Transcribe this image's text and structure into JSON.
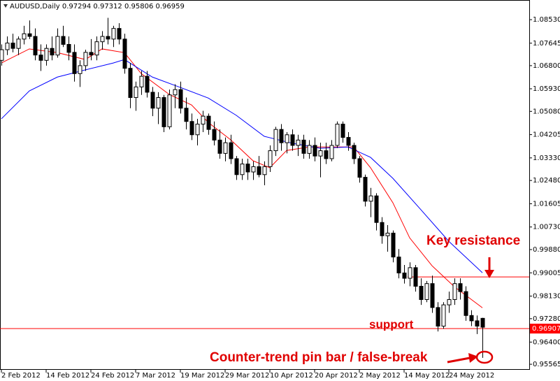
{
  "chart_data": {
    "type": "candlestick",
    "title": "AUDUSD,Daily  0.97294 0.97312 0.95806 0.96959",
    "categories": [
      "2 Feb 2012",
      null,
      null,
      null,
      null,
      null,
      null,
      null,
      "14 Feb 2012",
      null,
      null,
      null,
      null,
      null,
      null,
      null,
      "24 Feb 2012",
      null,
      null,
      null,
      null,
      null,
      null,
      null,
      "7 Mar 2012",
      null,
      null,
      null,
      null,
      null,
      null,
      null,
      "19 Mar 2012",
      null,
      null,
      null,
      null,
      null,
      null,
      null,
      "29 Mar 2012",
      null,
      null,
      null,
      null,
      null,
      null,
      null,
      "10 Apr 2012",
      null,
      null,
      null,
      null,
      null,
      null,
      null,
      "20 Apr 2012",
      null,
      null,
      null,
      null,
      null,
      null,
      null,
      "2 May 2012",
      null,
      null,
      null,
      null,
      null,
      null,
      null,
      "14 May 2012",
      null,
      null,
      null,
      null,
      null,
      null,
      null,
      "24 May 2012",
      null,
      null,
      null,
      null,
      null,
      null
    ],
    "open": [
      1.07,
      1.074,
      1.0765,
      1.0745,
      1.078,
      1.08,
      1.079,
      1.072,
      1.07,
      1.0745,
      1.072,
      1.079,
      1.076,
      1.073,
      1.065,
      1.068,
      1.073,
      1.072,
      1.077,
      1.079,
      1.078,
      1.082,
      1.078,
      1.067,
      1.056,
      1.06,
      1.064,
      1.058,
      1.052,
      1.056,
      1.045,
      1.057,
      1.059,
      1.052,
      1.047,
      1.042,
      1.046,
      1.049,
      1.044,
      1.04,
      1.035,
      1.039,
      1.033,
      1.027,
      1.031,
      1.028,
      1.03,
      1.027,
      1.03,
      1.036,
      1.044,
      1.039,
      1.042,
      1.038,
      1.04,
      1.035,
      1.038,
      1.034,
      1.036,
      1.033,
      1.038,
      1.046,
      1.041,
      1.038,
      1.033,
      1.026,
      1.017,
      1.019,
      1.009,
      1.004,
      1.005,
      0.996,
      0.99,
      0.988,
      0.992,
      0.985,
      0.98,
      0.986,
      0.977,
      0.97,
      0.978,
      0.98,
      0.986,
      0.983,
      0.974,
      0.972,
      0.97294
    ],
    "high": [
      1.076,
      1.079,
      1.08,
      1.079,
      1.083,
      1.085,
      1.082,
      1.076,
      1.076,
      1.079,
      1.082,
      1.083,
      1.079,
      1.076,
      1.07,
      1.074,
      1.078,
      1.079,
      1.081,
      1.086,
      1.083,
      1.084,
      1.08,
      1.069,
      1.062,
      1.066,
      1.066,
      1.06,
      1.058,
      1.057,
      1.059,
      1.061,
      1.062,
      1.056,
      1.05,
      1.048,
      1.051,
      1.05,
      1.047,
      1.044,
      1.041,
      1.042,
      1.034,
      1.033,
      1.033,
      1.032,
      1.034,
      1.032,
      1.038,
      1.045,
      1.046,
      1.043,
      1.044,
      1.042,
      1.042,
      1.04,
      1.041,
      1.039,
      1.039,
      1.04,
      1.047,
      1.047,
      1.043,
      1.039,
      1.034,
      1.027,
      1.022,
      1.02,
      1.011,
      1.008,
      1.006,
      0.999,
      0.993,
      0.994,
      0.993,
      0.988,
      0.987,
      0.989,
      0.979,
      0.979,
      0.983,
      0.988,
      0.988,
      0.985,
      0.976,
      0.974,
      0.97312
    ],
    "low": [
      1.068,
      1.072,
      1.073,
      1.072,
      1.076,
      1.078,
      1.07,
      1.066,
      1.068,
      1.07,
      1.071,
      1.075,
      1.07,
      1.062,
      1.06,
      1.066,
      1.07,
      1.07,
      1.074,
      1.076,
      1.075,
      1.076,
      1.065,
      1.052,
      1.051,
      1.057,
      1.056,
      1.049,
      1.046,
      1.043,
      1.044,
      1.052,
      1.05,
      1.044,
      1.04,
      1.038,
      1.043,
      1.042,
      1.038,
      1.033,
      1.032,
      1.031,
      1.025,
      1.025,
      1.025,
      1.025,
      1.026,
      1.023,
      1.028,
      1.034,
      1.036,
      1.035,
      1.036,
      1.034,
      1.033,
      1.033,
      1.032,
      1.026,
      1.031,
      1.032,
      1.037,
      1.039,
      1.036,
      1.031,
      1.024,
      1.015,
      1.011,
      1.006,
      1.001,
      0.998,
      0.994,
      0.988,
      0.986,
      0.985,
      0.983,
      0.978,
      0.979,
      0.975,
      0.968,
      0.969,
      0.975,
      0.978,
      0.98,
      0.972,
      0.97,
      0.967,
      0.95806
    ],
    "close": [
      1.074,
      1.0765,
      1.0745,
      1.078,
      1.08,
      1.079,
      1.072,
      1.07,
      1.0745,
      1.072,
      1.079,
      1.076,
      1.073,
      1.065,
      1.068,
      1.073,
      1.072,
      1.077,
      1.079,
      1.078,
      1.082,
      1.078,
      1.067,
      1.056,
      1.06,
      1.064,
      1.058,
      1.052,
      1.056,
      1.045,
      1.057,
      1.059,
      1.052,
      1.047,
      1.042,
      1.046,
      1.049,
      1.044,
      1.04,
      1.035,
      1.039,
      1.033,
      1.027,
      1.031,
      1.028,
      1.03,
      1.027,
      1.03,
      1.036,
      1.044,
      1.039,
      1.042,
      1.038,
      1.04,
      1.035,
      1.038,
      1.034,
      1.036,
      1.033,
      1.038,
      1.046,
      1.041,
      1.038,
      1.033,
      1.026,
      1.017,
      1.019,
      1.009,
      1.004,
      1.005,
      0.996,
      0.99,
      0.988,
      0.992,
      0.985,
      0.98,
      0.986,
      0.977,
      0.97,
      0.978,
      0.98,
      0.986,
      0.983,
      0.974,
      0.972,
      0.97,
      0.96959
    ],
    "lines": [
      {
        "color": "#ff0000",
        "x": [
          0,
          5,
          10,
          15,
          18,
          22,
          25,
          30,
          34,
          37,
          41,
          45,
          48,
          51,
          55,
          60,
          63,
          66,
          70,
          73,
          77,
          81,
          86
        ],
        "values": [
          1.069,
          1.0743,
          1.0729,
          1.0703,
          1.0743,
          1.0729,
          1.065,
          1.0572,
          1.0532,
          1.0466,
          1.0401,
          1.0322,
          1.0296,
          1.0361,
          1.0374,
          1.0374,
          1.0374,
          1.0296,
          1.0164,
          1.0032,
          0.9927,
          0.9848,
          0.9769
        ]
      },
      {
        "color": "#0000ff",
        "x": [
          0,
          5,
          10,
          15,
          20,
          22,
          27,
          32,
          37,
          42,
          47,
          52,
          57,
          62,
          66,
          70,
          75,
          80,
          86
        ],
        "values": [
          1.048,
          1.0585,
          1.0637,
          1.0664,
          1.069,
          1.0703,
          1.0637,
          1.0598,
          1.0558,
          1.0493,
          1.0414,
          1.0388,
          1.0369,
          1.0374,
          1.0335,
          1.0256,
          1.0138,
          1.0019,
          0.9901
        ]
      }
    ],
    "ylim": [
      0.9533,
      1.0927
    ],
    "yticks": [
      {
        "value": 1.0853,
        "label": "1.08530"
      },
      1.07645,
      {
        "value": 1.068,
        "label": "1.06800"
      },
      {
        "value": 1.0593,
        "label": "1.05930"
      },
      {
        "value": 1.0508,
        "label": "1.05080"
      },
      1.04205,
      {
        "value": 1.0333,
        "label": "1.03330"
      },
      {
        "value": 1.0248,
        "label": "1.02480"
      },
      1.01605,
      {
        "value": 1.0073,
        "label": "1.00730"
      },
      {
        "value": 0.9988,
        "label": "0.99880"
      },
      0.99005,
      {
        "value": 0.9813,
        "label": "0.98130"
      },
      {
        "value": 0.9728,
        "label": "0.97280"
      },
      {
        "value": 0.964,
        "label": "0.96400"
      },
      0.95565
    ],
    "support_level": 0.96907,
    "resistance_level": 0.9885,
    "annotations": {
      "resistance": "Key resistance",
      "support": "support",
      "pin_bar": "Counter-trend pin bar / false-break"
    },
    "level_color": "#ff0000",
    "up_color": "#ffffff",
    "down_color": "#000000"
  }
}
